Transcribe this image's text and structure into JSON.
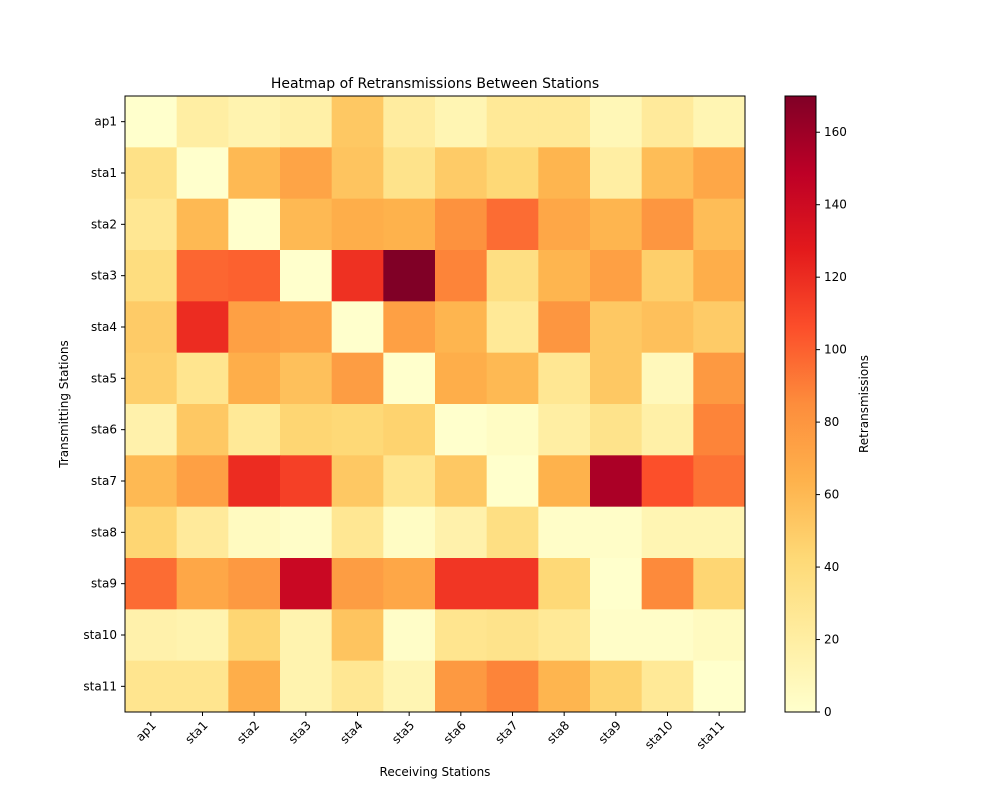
{
  "chart_data": {
    "type": "heatmap",
    "title": "Heatmap of Retransmissions Between Stations",
    "xlabel": "Receiving Stations",
    "ylabel": "Transmitting Stations",
    "x_categories": [
      "ap1",
      "sta1",
      "sta2",
      "sta3",
      "sta4",
      "sta5",
      "sta6",
      "sta7",
      "sta8",
      "sta9",
      "sta10",
      "sta11"
    ],
    "y_categories": [
      "ap1",
      "sta1",
      "sta2",
      "sta3",
      "sta4",
      "sta5",
      "sta6",
      "sta7",
      "sta8",
      "sta9",
      "sta10",
      "sta11"
    ],
    "values": [
      [
        0,
        20,
        14,
        18,
        52,
        22,
        12,
        26,
        26,
        10,
        24,
        12
      ],
      [
        34,
        0,
        60,
        72,
        54,
        32,
        50,
        42,
        62,
        20,
        58,
        70
      ],
      [
        28,
        60,
        0,
        60,
        66,
        64,
        82,
        96,
        70,
        62,
        80,
        58
      ],
      [
        38,
        98,
        100,
        0,
        118,
        170,
        88,
        36,
        62,
        74,
        48,
        66
      ],
      [
        50,
        120,
        74,
        72,
        0,
        74,
        62,
        26,
        80,
        52,
        56,
        50
      ],
      [
        48,
        30,
        66,
        56,
        76,
        0,
        66,
        60,
        28,
        52,
        8,
        78
      ],
      [
        16,
        52,
        26,
        44,
        42,
        46,
        0,
        4,
        20,
        32,
        18,
        88
      ],
      [
        60,
        74,
        120,
        112,
        52,
        30,
        52,
        0,
        64,
        155,
        106,
        94
      ],
      [
        44,
        24,
        6,
        2,
        28,
        4,
        16,
        36,
        2,
        2,
        12,
        12
      ],
      [
        96,
        70,
        78,
        142,
        76,
        70,
        116,
        116,
        42,
        0,
        86,
        44
      ],
      [
        16,
        14,
        44,
        14,
        54,
        2,
        30,
        32,
        26,
        2,
        2,
        6
      ],
      [
        30,
        30,
        66,
        14,
        28,
        12,
        78,
        88,
        62,
        46,
        26,
        0
      ]
    ],
    "colorbar": {
      "label": "Retransmissions",
      "range": [
        0,
        170
      ],
      "ticks": [
        0,
        20,
        40,
        60,
        80,
        100,
        120,
        140,
        160
      ],
      "colormap": "YlOrRd"
    }
  }
}
